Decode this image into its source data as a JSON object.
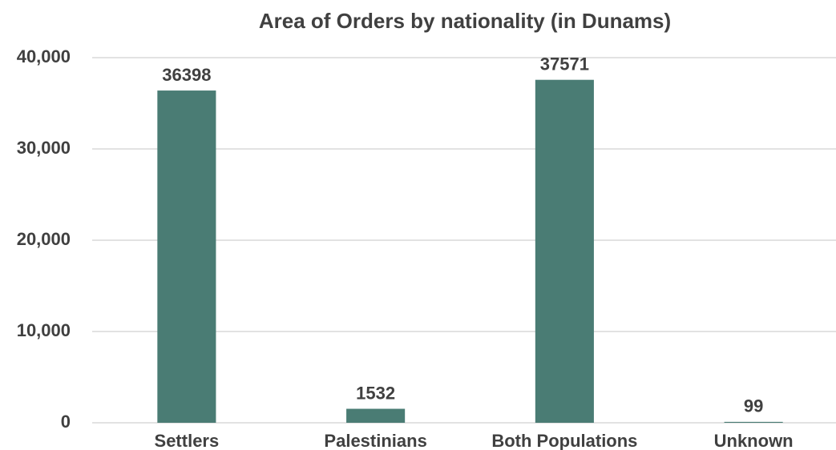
{
  "chart_data": {
    "type": "bar",
    "title": "Area of Orders by nationality (in Dunams)",
    "categories": [
      "Settlers",
      "Palestinians",
      "Both Populations",
      "Unknown"
    ],
    "values": [
      36398,
      1532,
      37571,
      99
    ],
    "color": "#4a7c74",
    "ylim": [
      0,
      40000
    ],
    "yticks": [
      0,
      {
        "value": 10000,
        "label": "10,000"
      },
      {
        "value": 20000,
        "label": "20,000"
      },
      {
        "value": 30000,
        "label": "30,000"
      },
      {
        "value": 40000,
        "label": "40,000"
      }
    ],
    "grid": true
  }
}
